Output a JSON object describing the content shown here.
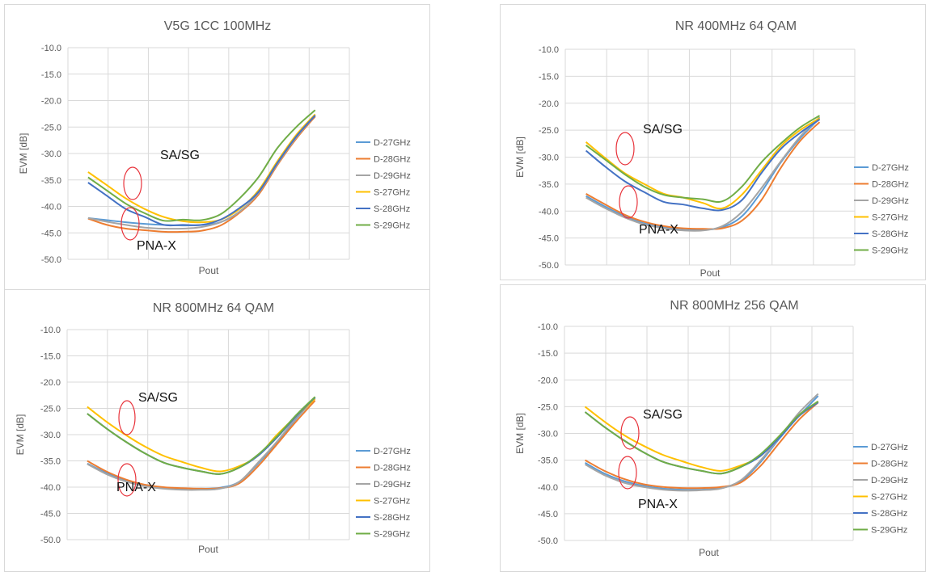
{
  "chart_data": [
    {
      "type": "line",
      "title": "V5G 1CC  100MHz",
      "xlabel": "Pout",
      "ylabel": "EVM [dB]",
      "ylim": [
        -50,
        -10
      ],
      "yticks": [
        "-10.0",
        "-15.0",
        "-20.0",
        "-25.0",
        "-30.0",
        "-35.0",
        "-40.0",
        "-45.0",
        "-50.0"
      ],
      "grid": true,
      "legend": "right",
      "x": [
        1,
        2,
        3,
        4,
        5,
        6,
        7,
        8,
        9,
        10,
        11,
        12,
        13
      ],
      "series": [
        {
          "name": "D-27GHz",
          "color": "#5B9BD5",
          "values": [
            -42.2,
            -42.6,
            -43.0,
            -43.3,
            -43.5,
            -43.6,
            -43.5,
            -43.0,
            -41.0,
            -37.5,
            -32.0,
            -27.0,
            -23.0
          ]
        },
        {
          "name": "D-28GHz",
          "color": "#ED7D31",
          "values": [
            -42.3,
            -43.5,
            -44.2,
            -44.5,
            -44.8,
            -44.8,
            -44.6,
            -43.6,
            -41.2,
            -37.8,
            -32.2,
            -27.2,
            -23.0
          ]
        },
        {
          "name": "D-29GHz",
          "color": "#A5A5A5",
          "values": [
            -42.2,
            -42.9,
            -43.5,
            -44.0,
            -44.2,
            -44.2,
            -43.9,
            -43.0,
            -41.0,
            -37.5,
            -32.0,
            -27.0,
            -22.8
          ]
        },
        {
          "name": "S-27GHz",
          "color": "#FFC000",
          "values": [
            -33.5,
            -36.0,
            -38.5,
            -40.5,
            -42.0,
            -42.8,
            -43.0,
            -42.5,
            -40.5,
            -37.0,
            -31.5,
            -26.5,
            -22.6
          ]
        },
        {
          "name": "S-28GHz",
          "color": "#4472C4",
          "values": [
            -35.5,
            -38.0,
            -40.5,
            -42.0,
            -43.5,
            -43.5,
            -43.5,
            -42.5,
            -40.3,
            -37.3,
            -31.8,
            -26.8,
            -22.8
          ]
        },
        {
          "name": "S-29GHz",
          "color": "#70AD47",
          "values": [
            -34.5,
            -37.0,
            -39.5,
            -41.3,
            -42.7,
            -42.5,
            -42.6,
            -41.5,
            -38.5,
            -34.5,
            -29.0,
            -25.0,
            -21.8
          ]
        }
      ],
      "annotations": [
        "SA/SG",
        "PNA-X"
      ]
    },
    {
      "type": "line",
      "title": "NR 400MHz 64 QAM",
      "xlabel": "Pout",
      "ylabel": "EVM [dB]",
      "ylim": [
        -50,
        -10
      ],
      "yticks": [
        "-10.0",
        "-15.0",
        "-20.0",
        "-25.0",
        "-30.0",
        "-35.0",
        "-40.0",
        "-45.0",
        "-50.0"
      ],
      "grid": true,
      "legend": "right",
      "x": [
        1,
        2,
        3,
        4,
        5,
        6,
        7,
        8,
        9,
        10,
        11,
        12,
        13
      ],
      "series": [
        {
          "name": "D-27GHz",
          "color": "#5B9BD5",
          "values": [
            -37.2,
            -39.2,
            -41.0,
            -42.3,
            -43.0,
            -43.5,
            -43.5,
            -43.0,
            -41.0,
            -36.5,
            -31.0,
            -26.5,
            -22.8
          ]
        },
        {
          "name": "D-28GHz",
          "color": "#ED7D31",
          "values": [
            -36.8,
            -38.8,
            -40.7,
            -42.0,
            -42.8,
            -43.2,
            -43.3,
            -43.2,
            -41.8,
            -38.0,
            -32.0,
            -27.0,
            -23.5
          ]
        },
        {
          "name": "D-29GHz",
          "color": "#A5A5A5",
          "values": [
            -37.5,
            -39.5,
            -41.2,
            -42.5,
            -43.2,
            -43.6,
            -43.6,
            -42.8,
            -40.2,
            -35.8,
            -30.8,
            -26.2,
            -22.6
          ]
        },
        {
          "name": "S-27GHz",
          "color": "#FFC000",
          "values": [
            -27.2,
            -30.2,
            -33.0,
            -35.0,
            -36.8,
            -37.5,
            -38.5,
            -39.5,
            -37.0,
            -32.5,
            -28.0,
            -25.0,
            -22.8
          ]
        },
        {
          "name": "S-28GHz",
          "color": "#4472C4",
          "values": [
            -28.8,
            -31.8,
            -34.5,
            -36.5,
            -38.3,
            -38.8,
            -39.5,
            -39.8,
            -38.0,
            -33.0,
            -28.5,
            -25.5,
            -23.0
          ]
        },
        {
          "name": "S-29GHz",
          "color": "#70AD47",
          "values": [
            -27.8,
            -30.5,
            -33.2,
            -35.5,
            -37.0,
            -37.5,
            -37.8,
            -38.2,
            -35.5,
            -31.0,
            -27.5,
            -24.5,
            -22.3
          ]
        }
      ],
      "annotations": [
        "SA/SG",
        "PNA-X"
      ]
    },
    {
      "type": "line",
      "title": "NR 800MHz 64 QAM",
      "xlabel": "Pout",
      "ylabel": "EVM [dB]",
      "ylim": [
        -50,
        -10
      ],
      "yticks": [
        "-10.0",
        "-15.0",
        "-20.0",
        "-25.0",
        "-30.0",
        "-35.0",
        "-40.0",
        "-45.0",
        "-50.0"
      ],
      "grid": true,
      "legend": "right",
      "x": [
        1,
        2,
        3,
        4,
        5,
        6,
        7,
        8,
        9,
        10,
        11,
        12,
        13
      ],
      "series": [
        {
          "name": "D-27GHz",
          "color": "#5B9BD5",
          "values": [
            -35.5,
            -37.3,
            -38.7,
            -39.6,
            -40.1,
            -40.3,
            -40.3,
            -40.1,
            -39.0,
            -35.5,
            -31.5,
            -27.0,
            -23.0
          ]
        },
        {
          "name": "D-28GHz",
          "color": "#ED7D31",
          "values": [
            -35.0,
            -37.0,
            -38.5,
            -39.5,
            -40.0,
            -40.2,
            -40.3,
            -40.2,
            -39.3,
            -36.0,
            -31.8,
            -27.5,
            -23.5
          ]
        },
        {
          "name": "D-29GHz",
          "color": "#A5A5A5",
          "values": [
            -35.6,
            -37.5,
            -38.9,
            -39.8,
            -40.3,
            -40.5,
            -40.5,
            -40.3,
            -39.0,
            -35.3,
            -31.3,
            -26.8,
            -22.9
          ]
        },
        {
          "name": "S-27GHz",
          "color": "#FFC000",
          "values": [
            -24.7,
            -27.5,
            -30.0,
            -32.2,
            -34.0,
            -35.2,
            -36.3,
            -37.0,
            -36.0,
            -34.0,
            -30.0,
            -26.5,
            -23.2
          ]
        },
        {
          "name": "S-28GHz",
          "color": "#4472C4",
          "values": [
            -26.0,
            -28.8,
            -31.3,
            -33.5,
            -35.3,
            -36.3,
            -37.0,
            -37.5,
            -36.3,
            -34.0,
            -30.5,
            -26.5,
            -22.9
          ]
        },
        {
          "name": "S-29GHz",
          "color": "#70AD47",
          "values": [
            -26.0,
            -28.8,
            -31.3,
            -33.5,
            -35.3,
            -36.3,
            -37.0,
            -37.5,
            -36.3,
            -33.8,
            -30.3,
            -26.3,
            -22.8
          ]
        }
      ],
      "annotations": [
        "SA/SG",
        "PNA-X"
      ]
    },
    {
      "type": "line",
      "title": "NR 800MHz 256 QAM",
      "xlabel": "Pout",
      "ylabel": "EVM [dB]",
      "ylim": [
        -50,
        -10
      ],
      "yticks": [
        "-10.0",
        "-15.0",
        "-20.0",
        "-25.0",
        "-30.0",
        "-35.0",
        "-40.0",
        "-45.0",
        "-50.0"
      ],
      "grid": true,
      "legend": "right",
      "x": [
        1,
        2,
        3,
        4,
        5,
        6,
        7,
        8,
        9,
        10,
        11,
        12,
        13
      ],
      "series": [
        {
          "name": "D-27GHz",
          "color": "#5B9BD5",
          "values": [
            -35.5,
            -37.5,
            -38.9,
            -39.8,
            -40.3,
            -40.5,
            -40.5,
            -40.2,
            -39.0,
            -35.5,
            -31.0,
            -26.8,
            -23.0
          ]
        },
        {
          "name": "D-28GHz",
          "color": "#ED7D31",
          "values": [
            -35.0,
            -37.0,
            -38.5,
            -39.5,
            -40.0,
            -40.2,
            -40.2,
            -40.0,
            -39.2,
            -36.2,
            -31.8,
            -27.5,
            -24.2
          ]
        },
        {
          "name": "D-29GHz",
          "color": "#A5A5A5",
          "values": [
            -35.8,
            -37.8,
            -39.2,
            -40.0,
            -40.5,
            -40.7,
            -40.6,
            -40.3,
            -38.8,
            -35.2,
            -30.8,
            -26.2,
            -22.6
          ]
        },
        {
          "name": "S-27GHz",
          "color": "#FFC000",
          "values": [
            -25.0,
            -27.8,
            -30.3,
            -32.3,
            -34.0,
            -35.2,
            -36.3,
            -37.0,
            -36.0,
            -34.3,
            -30.5,
            -26.8,
            -24.0
          ]
        },
        {
          "name": "S-28GHz",
          "color": "#4472C4",
          "values": [
            -26.0,
            -28.8,
            -31.3,
            -33.5,
            -35.3,
            -36.3,
            -37.0,
            -37.5,
            -36.3,
            -34.3,
            -30.8,
            -26.8,
            -24.2
          ]
        },
        {
          "name": "S-29GHz",
          "color": "#70AD47",
          "values": [
            -26.0,
            -28.8,
            -31.3,
            -33.5,
            -35.3,
            -36.3,
            -37.0,
            -37.5,
            -36.3,
            -34.0,
            -30.5,
            -26.6,
            -24.0
          ]
        }
      ],
      "annotations": [
        "SA/SG",
        "PNA-X"
      ]
    }
  ]
}
